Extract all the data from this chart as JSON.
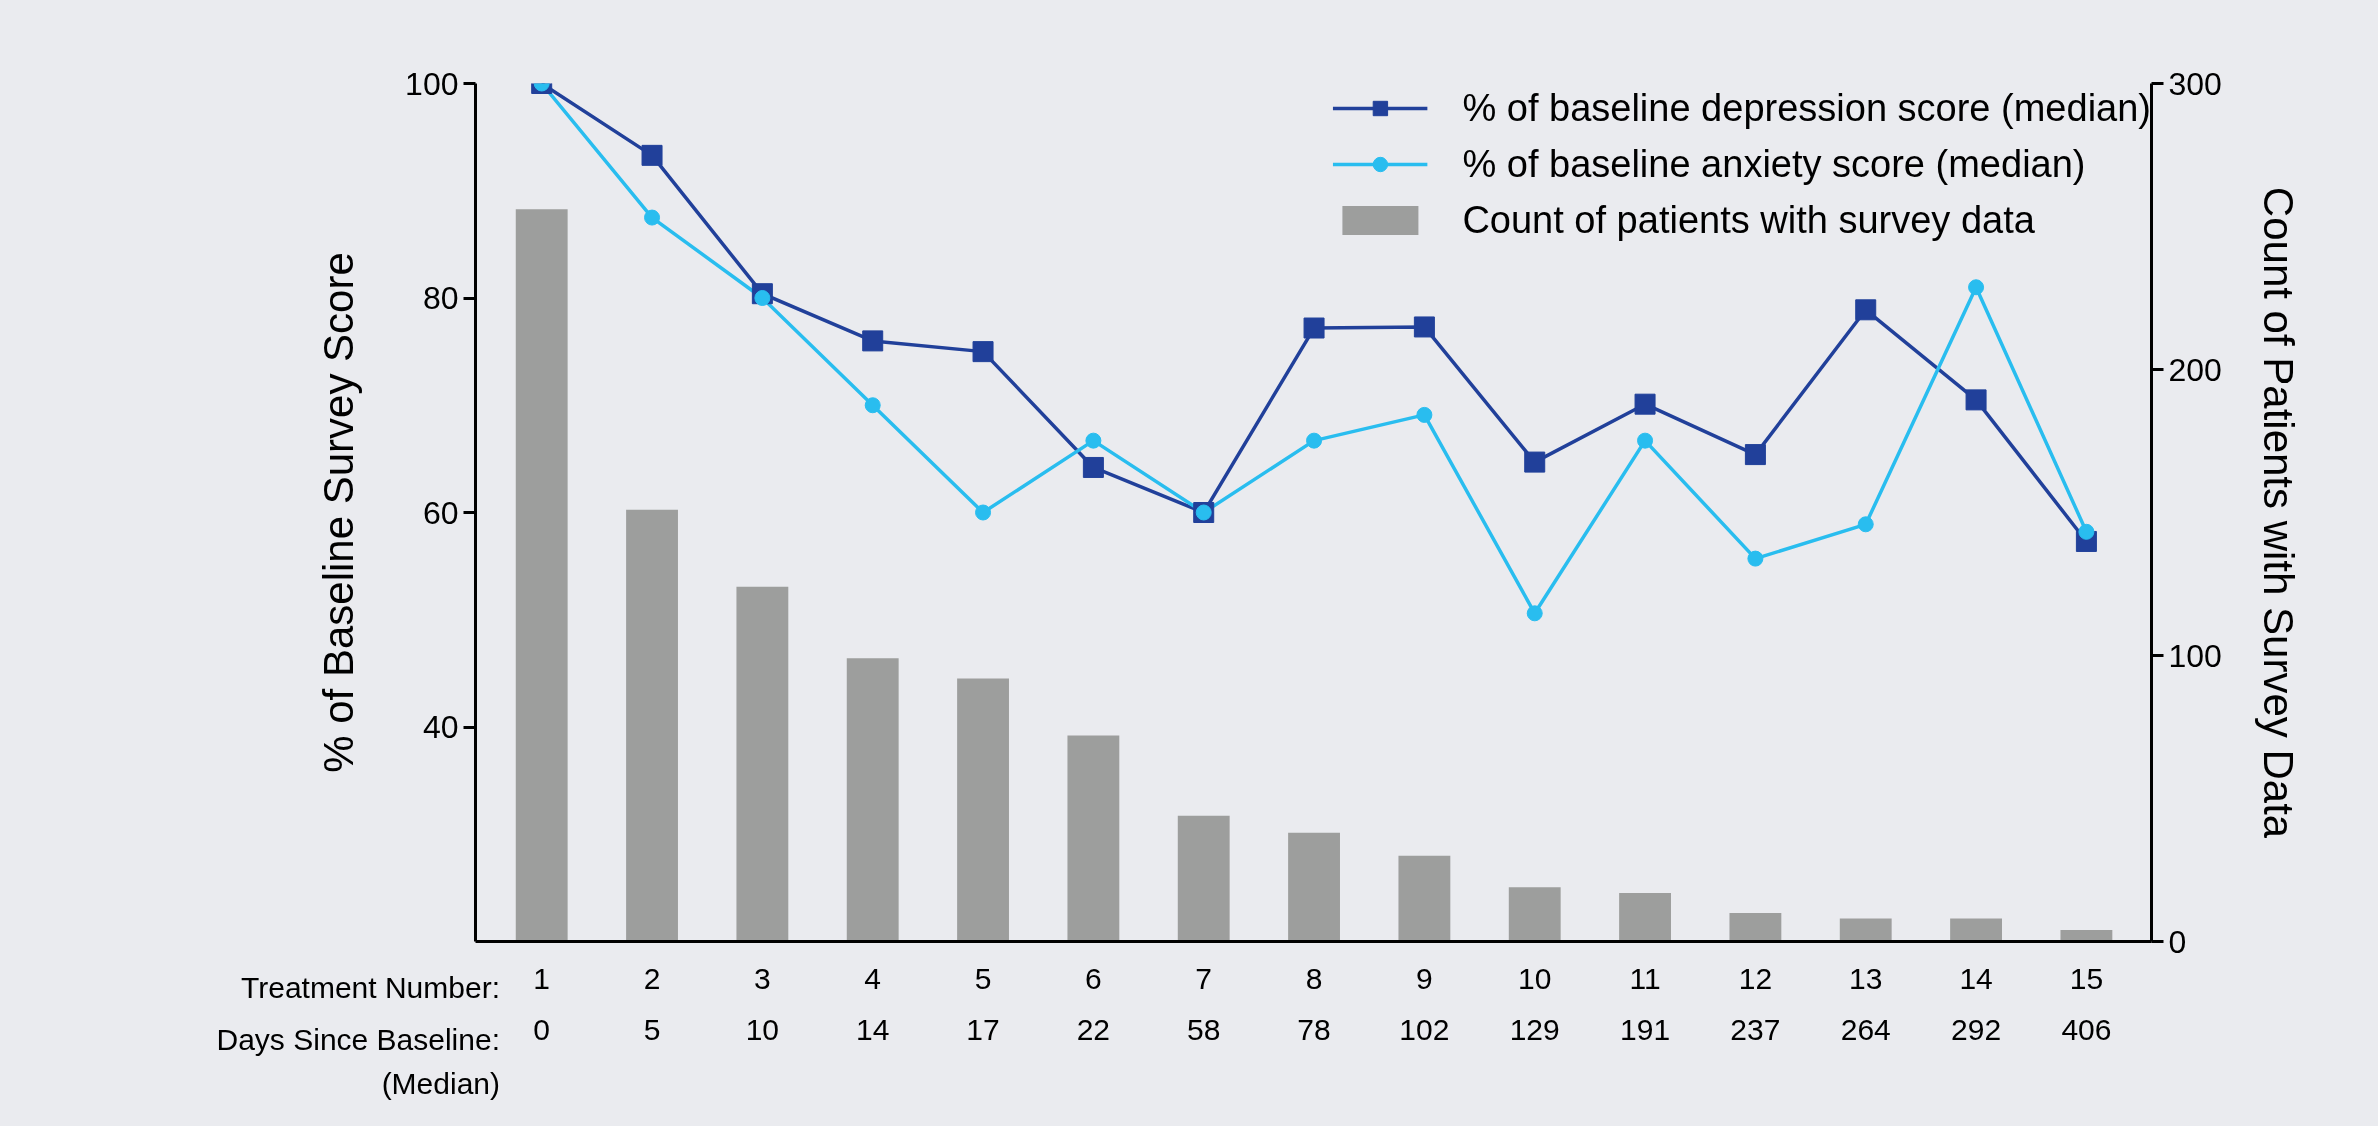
{
  "chart_data": {
    "type": "line",
    "categories": [
      "1\n0",
      "2\n5",
      "3\n10",
      "4\n14",
      "5\n17",
      "6\n22",
      "7\n58",
      "8\n78",
      "9\n102",
      "10\n129",
      "11\n191",
      "12\n237",
      "13\n264",
      "14\n292",
      "15\n406"
    ],
    "ylabel": "% of Baseline Survey Score",
    "y2label": "Count of Patients with Survey Data",
    "ylim": [
      20,
      100
    ],
    "yticks": [
      40,
      60,
      80,
      100
    ],
    "y2lim": [
      0,
      300
    ],
    "y2ticks": [
      0,
      100,
      200,
      300
    ],
    "grid": false,
    "legend": "top right",
    "line_style": "solid",
    "annotations": [
      "Treatment Number:",
      "Days Since Baseline:\n(Median)"
    ],
    "series": [
      {
        "name": "% of baseline depression score (median)",
        "color": "#21409a",
        "marker": "square",
        "values": [
          100,
          93.3,
          80.4,
          76.0,
          75.0,
          64.2,
          60.0,
          77.2,
          77.3,
          64.7,
          70.1,
          65.4,
          78.9,
          70.5,
          57.3
        ]
      },
      {
        "name": "% of baseline anxiety score (median)",
        "color": "#29bdef",
        "marker": "circle",
        "values": [
          100,
          87.5,
          80.0,
          70.0,
          60.0,
          66.7,
          60.0,
          66.7,
          69.1,
          50.6,
          66.7,
          55.7,
          58.9,
          81.0,
          58.2
        ]
      },
      {
        "name": "Count of patients with survey data",
        "type": "bar",
        "axis": "y2",
        "color": "#9d9e9d",
        "values": [
          256,
          151,
          124,
          99,
          92,
          72,
          44,
          38,
          30,
          19,
          17,
          10,
          8,
          8,
          4
        ]
      }
    ]
  }
}
